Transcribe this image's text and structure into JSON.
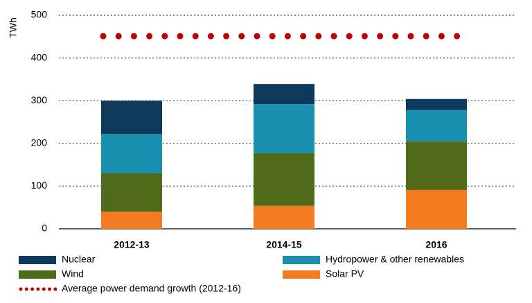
{
  "chart_data": {
    "type": "bar",
    "stacked": true,
    "y_label": "TWh",
    "categories": [
      "2012-13",
      "2014-15",
      "2016"
    ],
    "series": [
      {
        "name": "Solar PV",
        "color": "#f47b20",
        "values": [
          40,
          54,
          91
        ]
      },
      {
        "name": "Wind",
        "color": "#4f6b1a",
        "values": [
          90,
          123,
          114
        ]
      },
      {
        "name": "Hydropower & other renewables",
        "color": "#1a8fb0",
        "values": [
          92,
          115,
          73
        ]
      },
      {
        "name": "Nuclear",
        "color": "#0d3a5c",
        "values": [
          78,
          47,
          26
        ]
      }
    ],
    "reference_line": {
      "name": "Average power demand growth (2012-16)",
      "value": 451,
      "color": "#c00000"
    },
    "ylim": [
      0,
      500
    ],
    "yticks": [
      0,
      100,
      200,
      300,
      400,
      500
    ],
    "grid": true
  }
}
